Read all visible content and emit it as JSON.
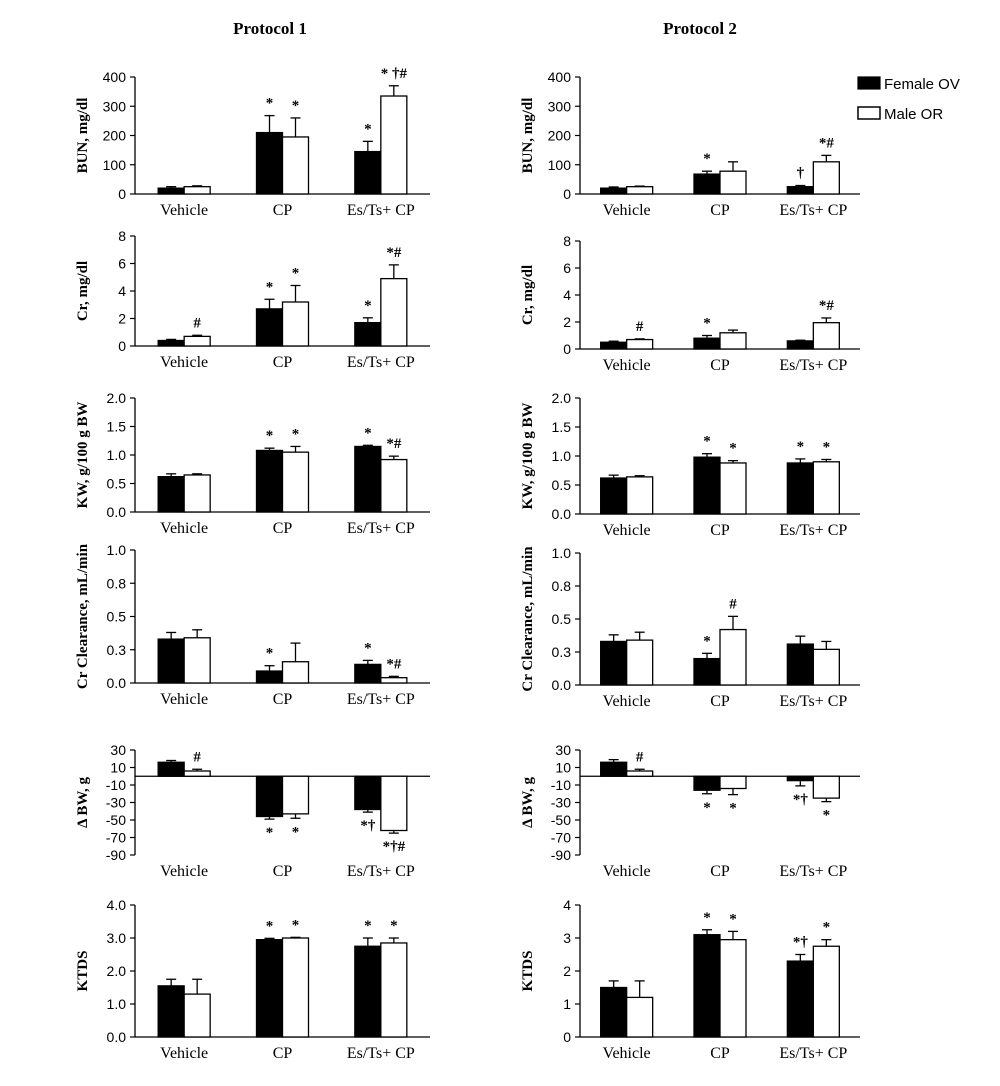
{
  "figure": {
    "columns": [
      "Protocol 1",
      "Protocol 2"
    ],
    "legend": [
      {
        "label": "Female OV",
        "fill": "#000000"
      },
      {
        "label": "Male OR",
        "fill": "#ffffff"
      }
    ],
    "colors": {
      "female": "#000000",
      "male": "#ffffff",
      "axis": "#000000"
    }
  },
  "chart_data": [
    {
      "type": "bar",
      "protocol": "Protocol 1",
      "ylabel": "BUN, mg/dl",
      "categories": [
        "Vehicle",
        "CP",
        "Es/Ts+ CP"
      ],
      "ylim": [
        0,
        400
      ],
      "ticks": [
        0,
        100,
        200,
        300,
        400
      ],
      "tick_labels": [
        "0",
        "100",
        "200",
        "300",
        "400"
      ],
      "series": [
        {
          "name": "Female OV",
          "values": [
            20,
            210,
            145
          ],
          "errors": [
            5,
            58,
            35
          ],
          "marks": [
            "",
            "*",
            "*"
          ]
        },
        {
          "name": "Male OR",
          "values": [
            25,
            195,
            335
          ],
          "errors": [
            3,
            65,
            35
          ],
          "marks": [
            "",
            "*",
            "* †#"
          ]
        }
      ]
    },
    {
      "type": "bar",
      "protocol": "Protocol 2",
      "ylabel": "BUN, mg/dl",
      "categories": [
        "Vehicle",
        "CP",
        "Es/Ts+ CP"
      ],
      "ylim": [
        0,
        400
      ],
      "ticks": [
        0,
        100,
        200,
        300,
        400
      ],
      "tick_labels": [
        "0",
        "100",
        "200",
        "300",
        "400"
      ],
      "series": [
        {
          "name": "Female OV",
          "values": [
            20,
            68,
            25
          ],
          "errors": [
            4,
            10,
            4
          ],
          "marks": [
            "",
            "*",
            "†"
          ]
        },
        {
          "name": "Male OR",
          "values": [
            25,
            78,
            110
          ],
          "errors": [
            2,
            32,
            22
          ],
          "marks": [
            "",
            "",
            "*#"
          ]
        }
      ]
    },
    {
      "type": "bar",
      "protocol": "Protocol 1",
      "ylabel": "Cr, mg/dl",
      "categories": [
        "Vehicle",
        "CP",
        "Es/Ts+ CP"
      ],
      "ylim": [
        0,
        8
      ],
      "ticks": [
        0,
        2,
        4,
        6,
        8
      ],
      "tick_labels": [
        "0",
        "2",
        "4",
        "6",
        "8"
      ],
      "series": [
        {
          "name": "Female OV",
          "values": [
            0.4,
            2.7,
            1.7
          ],
          "errors": [
            0.08,
            0.7,
            0.35
          ],
          "marks": [
            "",
            "*",
            "*"
          ]
        },
        {
          "name": "Male OR",
          "values": [
            0.7,
            3.2,
            4.9
          ],
          "errors": [
            0.08,
            1.2,
            1.0
          ],
          "marks": [
            "#",
            "*",
            "*#"
          ]
        }
      ]
    },
    {
      "type": "bar",
      "protocol": "Protocol 2",
      "ylabel": "Cr, mg/dl",
      "categories": [
        "Vehicle",
        "CP",
        "Es/Ts+ CP"
      ],
      "ylim": [
        0,
        8
      ],
      "ticks": [
        0,
        2,
        4,
        6,
        8
      ],
      "tick_labels": [
        "0",
        "2",
        "4",
        "6",
        "8"
      ],
      "series": [
        {
          "name": "Female OV",
          "values": [
            0.5,
            0.8,
            0.6
          ],
          "errors": [
            0.08,
            0.2,
            0.05
          ],
          "marks": [
            "",
            "*",
            ""
          ]
        },
        {
          "name": "Male OR",
          "values": [
            0.7,
            1.2,
            1.95
          ],
          "errors": [
            0.05,
            0.2,
            0.35
          ],
          "marks": [
            "#",
            "",
            "*#"
          ]
        }
      ]
    },
    {
      "type": "bar",
      "protocol": "Protocol 1",
      "ylabel": "KW, g/100 g BW",
      "categories": [
        "Vehicle",
        "CP",
        "Es/Ts+ CP"
      ],
      "ylim": [
        0,
        2
      ],
      "ticks": [
        0,
        0.5,
        1,
        1.5,
        2
      ],
      "tick_labels": [
        "0.0",
        "0.5",
        "1.0",
        "1.5",
        "2.0"
      ],
      "series": [
        {
          "name": "Female OV",
          "values": [
            0.62,
            1.08,
            1.15
          ],
          "errors": [
            0.05,
            0.04,
            0.02
          ],
          "marks": [
            "",
            "*",
            "*"
          ]
        },
        {
          "name": "Male OR",
          "values": [
            0.65,
            1.05,
            0.92
          ],
          "errors": [
            0.02,
            0.1,
            0.06
          ],
          "marks": [
            "",
            "*",
            "*#"
          ]
        }
      ]
    },
    {
      "type": "bar",
      "protocol": "Protocol 2",
      "ylabel": "KW, g/100 g BW",
      "categories": [
        "Vehicle",
        "CP",
        "Es/Ts+ CP"
      ],
      "ylim": [
        0,
        2
      ],
      "ticks": [
        0,
        0.5,
        1,
        1.5,
        2
      ],
      "tick_labels": [
        "0.0",
        "0.5",
        "1.0",
        "1.5",
        "2.0"
      ],
      "series": [
        {
          "name": "Female OV",
          "values": [
            0.62,
            0.98,
            0.88
          ],
          "errors": [
            0.05,
            0.06,
            0.07
          ],
          "marks": [
            "",
            "*",
            "*"
          ]
        },
        {
          "name": "Male OR",
          "values": [
            0.64,
            0.88,
            0.9
          ],
          "errors": [
            0.02,
            0.04,
            0.04
          ],
          "marks": [
            "",
            "*",
            "*"
          ]
        }
      ]
    },
    {
      "type": "bar",
      "protocol": "Protocol 1",
      "ylabel": "Cr Clearance, mL/min",
      "categories": [
        "Vehicle",
        "CP",
        "Es/Ts+ CP"
      ],
      "ylim": [
        0,
        1
      ],
      "ticks": [
        0,
        0.25,
        0.5,
        0.75,
        1
      ],
      "tick_labels": [
        "0.0",
        "0.3",
        "0.5",
        "0.8",
        "1.0"
      ],
      "series": [
        {
          "name": "Female OV",
          "values": [
            0.33,
            0.09,
            0.14
          ],
          "errors": [
            0.05,
            0.04,
            0.03
          ],
          "marks": [
            "",
            "*",
            "*"
          ]
        },
        {
          "name": "Male OR",
          "values": [
            0.34,
            0.16,
            0.04
          ],
          "errors": [
            0.06,
            0.14,
            0.01
          ],
          "marks": [
            "",
            "",
            "*#"
          ]
        }
      ]
    },
    {
      "type": "bar",
      "protocol": "Protocol 2",
      "ylabel": "Cr Clearance, mL/min",
      "categories": [
        "Vehicle",
        "CP",
        "Es/Ts+ CP"
      ],
      "ylim": [
        0,
        1
      ],
      "ticks": [
        0,
        0.25,
        0.5,
        0.75,
        1
      ],
      "tick_labels": [
        "0.0",
        "0.3",
        "0.5",
        "0.8",
        "1.0"
      ],
      "series": [
        {
          "name": "Female OV",
          "values": [
            0.33,
            0.2,
            0.31
          ],
          "errors": [
            0.05,
            0.04,
            0.06
          ],
          "marks": [
            "",
            "*",
            ""
          ]
        },
        {
          "name": "Male OR",
          "values": [
            0.34,
            0.42,
            0.27
          ],
          "errors": [
            0.06,
            0.1,
            0.06
          ],
          "marks": [
            "",
            "#",
            ""
          ]
        }
      ]
    },
    {
      "type": "bar",
      "protocol": "Protocol 1",
      "ylabel": "Δ BW, g",
      "categories": [
        "Vehicle",
        "CP",
        "Es/Ts+ CP"
      ],
      "ylim": [
        -90,
        30
      ],
      "ticks": [
        -90,
        -70,
        -50,
        -30,
        -10,
        10,
        30
      ],
      "tick_labels": [
        "-90",
        "-70",
        "-50",
        "-30",
        "-10",
        "10",
        "30"
      ],
      "series": [
        {
          "name": "Female OV",
          "values": [
            16,
            -46,
            -38
          ],
          "errors": [
            2,
            3,
            3
          ],
          "marks": [
            "",
            "*",
            "*†"
          ]
        },
        {
          "name": "Male OR",
          "values": [
            6,
            -43,
            -62
          ],
          "errors": [
            2,
            5,
            3
          ],
          "marks": [
            "#",
            "*",
            "*†#"
          ]
        }
      ]
    },
    {
      "type": "bar",
      "protocol": "Protocol 2",
      "ylabel": "Δ BW, g",
      "categories": [
        "Vehicle",
        "CP",
        "Es/Ts+ CP"
      ],
      "ylim": [
        -90,
        30
      ],
      "ticks": [
        -90,
        -70,
        -50,
        -30,
        -10,
        10,
        30
      ],
      "tick_labels": [
        "-90",
        "-70",
        "-50",
        "-30",
        "-10",
        "10",
        "30"
      ],
      "series": [
        {
          "name": "Female OV",
          "values": [
            16,
            -16,
            -5
          ],
          "errors": [
            3,
            4,
            6
          ],
          "marks": [
            "",
            "*",
            "*†"
          ]
        },
        {
          "name": "Male OR",
          "values": [
            6,
            -14,
            -25
          ],
          "errors": [
            2,
            7,
            4
          ],
          "marks": [
            "#",
            "*",
            "*"
          ]
        }
      ]
    },
    {
      "type": "bar",
      "protocol": "Protocol 1",
      "ylabel": "KTDS",
      "categories": [
        "Vehicle",
        "CP",
        "Es/Ts+ CP"
      ],
      "ylim": [
        0,
        4
      ],
      "ticks": [
        0,
        1,
        2,
        3,
        4
      ],
      "tick_labels": [
        "0.0",
        "1.0",
        "2.0",
        "3.0",
        "4.0"
      ],
      "series": [
        {
          "name": "Female OV",
          "values": [
            1.55,
            2.95,
            2.75
          ],
          "errors": [
            0.2,
            0.04,
            0.25
          ],
          "marks": [
            "",
            "*",
            "*"
          ]
        },
        {
          "name": "Male OR",
          "values": [
            1.3,
            3.0,
            2.85
          ],
          "errors": [
            0.45,
            0.02,
            0.15
          ],
          "marks": [
            "",
            "*",
            "*"
          ]
        }
      ]
    },
    {
      "type": "bar",
      "protocol": "Protocol 2",
      "ylabel": "KTDS",
      "categories": [
        "Vehicle",
        "CP",
        "Es/Ts+ CP"
      ],
      "ylim": [
        0,
        4
      ],
      "ticks": [
        0,
        1,
        2,
        3,
        4
      ],
      "tick_labels": [
        "0",
        "1",
        "2",
        "3",
        "4"
      ],
      "series": [
        {
          "name": "Female OV",
          "values": [
            1.5,
            3.1,
            2.3
          ],
          "errors": [
            0.2,
            0.15,
            0.2
          ],
          "marks": [
            "",
            "*",
            "*†"
          ]
        },
        {
          "name": "Male OR",
          "values": [
            1.2,
            2.95,
            2.75
          ],
          "errors": [
            0.5,
            0.25,
            0.2
          ],
          "marks": [
            "",
            "*",
            "*"
          ]
        }
      ]
    }
  ]
}
